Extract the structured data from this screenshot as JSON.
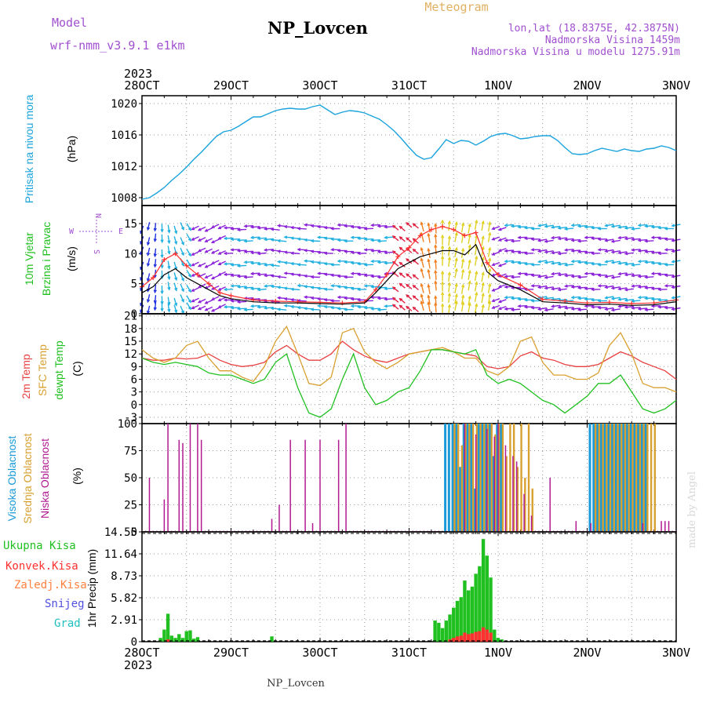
{
  "header": {
    "model_label": "Model",
    "model_name": "wrf-nmm_v3.9.1 e1km",
    "station": "NP_Lovcen",
    "product": "Meteogram",
    "lonlat": "lon,lat (18.8375E, 42.3875N)",
    "altitude": "Nadmorska Visina 1459m",
    "model_altitude": "Nadmorska Visina u modelu 1275.91m",
    "year_top": "2023",
    "year_bottom": "2023",
    "footer_station": "NP_Lovcen",
    "credit": "made by Angel"
  },
  "time_axis": {
    "labels": [
      "28OCT",
      "29OCT",
      "30OCT",
      "31OCT",
      "1NOV",
      "2NOV",
      "3NOV"
    ],
    "start_hour": 0,
    "end_hour": 144
  },
  "colors": {
    "pressure": "#1aa3dd",
    "wind_speed": "#000000",
    "wind_gust": "#ff3030",
    "temp2m": "#e84040",
    "sfc_temp": "#d9a030",
    "dewpoint": "#20c020",
    "high_cloud": "#1a9ad8",
    "mid_cloud": "#d8a030",
    "low_cloud": "#b01a90",
    "total_precip": "#20c020",
    "conv_precip": "#ff3030"
  },
  "chart_data": [
    {
      "type": "line",
      "panel": "pressure",
      "ylabel_lines": [
        "Pritisak na nivou mora",
        "(hPa)"
      ],
      "ylim": [
        1007,
        1021
      ],
      "yticks": [
        "1008",
        "1012",
        "1016",
        "1020"
      ],
      "series": [
        {
          "hours": [
            0,
            2,
            4,
            6,
            8,
            10,
            12,
            14,
            16,
            18,
            20,
            22,
            24,
            26,
            28,
            30,
            32,
            34,
            36,
            38,
            40,
            42,
            44,
            46,
            48,
            50,
            52,
            54,
            56,
            58,
            60,
            62,
            64,
            66,
            68,
            70,
            72,
            74,
            76,
            78,
            80,
            82,
            84,
            86,
            88,
            90,
            92,
            94,
            96,
            98,
            100,
            102,
            104,
            106,
            108,
            110,
            112,
            114,
            116,
            118,
            120,
            122,
            124,
            126,
            128,
            130,
            132,
            134,
            136,
            138,
            140,
            142,
            144
          ],
          "values": [
            1007.8,
            1008.0,
            1008.6,
            1009.3,
            1010.2,
            1011.0,
            1011.9,
            1012.9,
            1013.8,
            1014.8,
            1015.8,
            1016.4,
            1016.6,
            1017.1,
            1017.7,
            1018.3,
            1018.3,
            1018.7,
            1019.1,
            1019.3,
            1019.4,
            1019.3,
            1019.3,
            1019.6,
            1019.8,
            1019.2,
            1018.6,
            1018.9,
            1019.1,
            1019.0,
            1018.8,
            1018.4,
            1018.0,
            1017.3,
            1016.5,
            1015.5,
            1014.4,
            1013.4,
            1012.9,
            1013.1,
            1014.2,
            1015.4,
            1014.9,
            1015.3,
            1015.2,
            1014.7,
            1015.2,
            1015.8,
            1016.1,
            1016.2,
            1015.9,
            1015.5,
            1015.6,
            1015.8,
            1015.9,
            1015.9,
            1015.3,
            1014.4,
            1013.6,
            1013.5,
            1013.6,
            1014.0,
            1014.3,
            1014.1,
            1013.9,
            1014.2,
            1014.0,
            1013.9,
            1014.2,
            1014.3,
            1014.6,
            1014.4,
            1014.0
          ]
        }
      ]
    },
    {
      "type": "line",
      "panel": "wind",
      "ylabel_lines": [
        "10m Vjetar",
        "Brzina i Pravac",
        "(m/s)"
      ],
      "compass": {
        "n": "N",
        "s": "S",
        "e": "E",
        "w": "W"
      },
      "ylim": [
        0,
        18
      ],
      "yticks": [
        "0",
        "5",
        "10",
        "15"
      ],
      "series": [
        {
          "name": "speed",
          "hours": [
            0,
            3,
            6,
            9,
            12,
            15,
            18,
            21,
            24,
            30,
            36,
            42,
            48,
            54,
            60,
            63,
            66,
            69,
            72,
            75,
            78,
            81,
            84,
            87,
            90,
            93,
            96,
            102,
            108,
            114,
            120,
            126,
            132,
            138,
            144
          ],
          "values": [
            3.5,
            4.5,
            6.5,
            7.5,
            6.0,
            5.0,
            4.0,
            3.0,
            2.5,
            2.0,
            1.8,
            1.8,
            1.7,
            1.6,
            1.8,
            3.5,
            5.5,
            7.5,
            8.5,
            9.5,
            10.0,
            10.5,
            10.5,
            9.8,
            11.5,
            7.0,
            5.5,
            4.0,
            2.0,
            1.8,
            1.5,
            1.6,
            1.4,
            1.5,
            2.0
          ]
        },
        {
          "name": "gust",
          "hours": [
            0,
            3,
            6,
            9,
            12,
            15,
            18,
            21,
            24,
            30,
            36,
            42,
            48,
            54,
            60,
            63,
            66,
            69,
            72,
            75,
            78,
            81,
            84,
            87,
            90,
            93,
            96,
            102,
            108,
            114,
            120,
            126,
            132,
            138,
            144
          ],
          "values": [
            4.5,
            6.0,
            9.0,
            10.0,
            8.0,
            6.5,
            5.0,
            3.5,
            3.0,
            2.3,
            2.1,
            2.0,
            1.9,
            1.8,
            2.0,
            4.0,
            6.5,
            9.5,
            11.0,
            13.0,
            14.0,
            14.5,
            14.0,
            13.0,
            13.5,
            8.5,
            6.5,
            4.8,
            2.4,
            2.1,
            1.8,
            1.9,
            1.7,
            1.8,
            2.3
          ]
        }
      ]
    },
    {
      "type": "line",
      "panel": "temperature",
      "ylabel_lines": [
        "2m Temp",
        "SFC Temp",
        "dewpt Temp",
        "(C)"
      ],
      "ylim": [
        -4.5,
        21.5
      ],
      "yticks": [
        "-3",
        "0",
        "3",
        "6",
        "9",
        "12",
        "15",
        "18",
        "21"
      ],
      "series": [
        {
          "name": "2m",
          "hours": [
            0,
            3,
            6,
            9,
            12,
            15,
            18,
            21,
            24,
            27,
            30,
            33,
            36,
            39,
            42,
            45,
            48,
            51,
            54,
            57,
            60,
            63,
            66,
            69,
            72,
            75,
            78,
            81,
            84,
            87,
            90,
            93,
            96,
            99,
            102,
            105,
            108,
            111,
            114,
            117,
            120,
            123,
            126,
            129,
            132,
            135,
            138,
            141,
            144
          ],
          "values": [
            11,
            10.5,
            10.5,
            11,
            10.8,
            11,
            12,
            10.5,
            9.5,
            9,
            9.3,
            10,
            12.5,
            14,
            12,
            10.5,
            10.5,
            12,
            15,
            13,
            11.5,
            10.5,
            10,
            11,
            12,
            12.5,
            13,
            13,
            12.5,
            12,
            11.5,
            9,
            8.5,
            9,
            11.5,
            12.5,
            11,
            10.5,
            9.5,
            9,
            9,
            9.5,
            11,
            12.5,
            11.5,
            10,
            9,
            8,
            6
          ]
        },
        {
          "name": "sfc",
          "hours": [
            0,
            3,
            6,
            9,
            12,
            15,
            18,
            21,
            24,
            27,
            30,
            33,
            36,
            39,
            42,
            45,
            48,
            51,
            54,
            57,
            60,
            63,
            66,
            69,
            72,
            75,
            78,
            81,
            84,
            87,
            90,
            93,
            96,
            99,
            102,
            105,
            108,
            111,
            114,
            117,
            120,
            123,
            126,
            129,
            132,
            135,
            138,
            141,
            144
          ],
          "values": [
            13,
            11,
            10,
            11,
            14,
            15,
            11,
            8,
            8,
            6.5,
            5.5,
            9,
            15,
            18.5,
            12,
            5,
            4.5,
            6.5,
            17,
            18,
            12.5,
            10,
            8.5,
            10,
            12,
            12.5,
            13,
            13.5,
            12.5,
            11,
            11,
            8,
            7,
            9,
            15,
            16,
            10,
            7,
            7,
            6,
            6,
            7.5,
            14,
            17,
            12,
            5,
            4,
            4,
            3
          ]
        },
        {
          "name": "dewpt",
          "hours": [
            0,
            3,
            6,
            9,
            12,
            15,
            18,
            21,
            24,
            27,
            30,
            33,
            36,
            39,
            42,
            45,
            48,
            51,
            54,
            57,
            60,
            63,
            66,
            69,
            72,
            75,
            78,
            81,
            84,
            87,
            90,
            93,
            96,
            99,
            102,
            105,
            108,
            111,
            114,
            117,
            120,
            123,
            126,
            129,
            132,
            135,
            138,
            141,
            144
          ],
          "values": [
            11,
            10,
            9.5,
            10,
            9.5,
            9,
            7.5,
            7,
            7,
            6,
            5,
            6,
            10,
            12,
            4,
            -2,
            -3,
            -1,
            6,
            12,
            4,
            0,
            1,
            3,
            4,
            8,
            13,
            13,
            12.5,
            12,
            13,
            7,
            5,
            6,
            5,
            3,
            1,
            0,
            -2,
            0,
            2,
            5,
            5,
            7,
            3,
            -1,
            -2,
            -1,
            1
          ]
        }
      ]
    },
    {
      "type": "bar",
      "panel": "cloud",
      "ylabel_lines": [
        "Visoka Oblacnost",
        "Srednja Oblacnost",
        "Niska Oblacnost",
        "(%)"
      ],
      "ylim": [
        0,
        100
      ],
      "yticks": [
        "0",
        "25",
        "50",
        "75",
        "100"
      ],
      "series": [
        {
          "name": "high",
          "hours": [
            82,
            83,
            84,
            85,
            86,
            87,
            88,
            89,
            90,
            91,
            92,
            93,
            94,
            95,
            96,
            97,
            121,
            122,
            123,
            124,
            125,
            126,
            127,
            128,
            129,
            130,
            131,
            132,
            133,
            134,
            135,
            136
          ],
          "values": [
            100,
            100,
            100,
            100,
            60,
            100,
            100,
            100,
            40,
            100,
            100,
            100,
            100,
            70,
            100,
            100,
            100,
            100,
            100,
            100,
            100,
            100,
            100,
            100,
            100,
            100,
            100,
            100,
            100,
            100,
            100,
            100
          ]
        },
        {
          "name": "mid",
          "hours": [
            84,
            85,
            86,
            87,
            88,
            89,
            90,
            91,
            92,
            93,
            94,
            95,
            96,
            97,
            98,
            99,
            100,
            101,
            102,
            103,
            104,
            105,
            122,
            123,
            124,
            125,
            126,
            127,
            128,
            129,
            130,
            131,
            132,
            133,
            134,
            135,
            136,
            137,
            138
          ],
          "values": [
            100,
            100,
            80,
            100,
            100,
            100,
            100,
            100,
            100,
            100,
            100,
            90,
            100,
            100,
            70,
            100,
            100,
            60,
            100,
            50,
            100,
            40,
            100,
            100,
            100,
            100,
            100,
            100,
            100,
            100,
            100,
            100,
            100,
            100,
            100,
            100,
            100,
            100,
            100
          ]
        },
        {
          "name": "low",
          "hours": [
            2,
            6,
            7,
            10,
            11,
            13,
            15,
            16,
            35,
            37,
            40,
            44,
            46,
            48,
            53,
            55,
            87,
            90,
            93,
            95,
            96,
            98,
            100,
            101,
            103,
            105,
            110,
            117,
            121,
            135,
            140,
            141,
            142
          ],
          "values": [
            50,
            30,
            100,
            85,
            82,
            100,
            100,
            85,
            12,
            25,
            85,
            85,
            8,
            85,
            85,
            100,
            100,
            90,
            95,
            88,
            100,
            80,
            70,
            65,
            35,
            15,
            50,
            10,
            8,
            8,
            10,
            10,
            10
          ]
        }
      ]
    },
    {
      "type": "bar",
      "panel": "precip",
      "ylabel_lines": [
        "1hr Precip (mm)"
      ],
      "legend": [
        "Ukupna Kisa",
        "Konvek.Kisa",
        "Zaledj.Kisa",
        "Snijeg",
        "Grad"
      ],
      "ylim": [
        0,
        14.55
      ],
      "yticks": [
        "0",
        "2.91",
        "5.82",
        "8.73",
        "11.64",
        "14.55"
      ],
      "series": [
        {
          "name": "total",
          "hours": [
            5,
            6,
            7,
            8,
            9,
            10,
            11,
            12,
            13,
            14,
            15,
            35,
            79,
            80,
            81,
            82,
            83,
            84,
            85,
            86,
            87,
            88,
            89,
            90,
            91,
            92,
            93,
            94,
            95,
            96,
            97
          ],
          "values": [
            0.5,
            1.6,
            3.7,
            0.8,
            0.5,
            1.0,
            0.5,
            1.4,
            1.5,
            0.4,
            0.6,
            0.7,
            2.8,
            2.5,
            1.8,
            2.8,
            3.6,
            4.5,
            5.4,
            5.9,
            8.1,
            6.8,
            7.3,
            9.0,
            10.0,
            13.6,
            11.4,
            8.5,
            1.6,
            0.5,
            0.3
          ]
        },
        {
          "name": "convective",
          "hours": [
            7,
            83,
            84,
            85,
            86,
            87,
            88,
            89,
            90,
            91,
            92,
            93,
            94
          ],
          "values": [
            0.3,
            0.3,
            0.5,
            0.7,
            0.8,
            1.2,
            1.0,
            1.1,
            1.3,
            1.4,
            1.9,
            1.6,
            1.2
          ]
        }
      ]
    }
  ]
}
